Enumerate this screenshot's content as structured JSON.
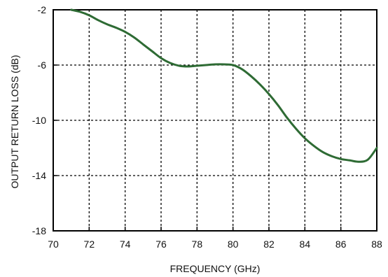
{
  "chart_data": {
    "type": "line",
    "title": "",
    "xlabel": "FREQUENCY (GHz)",
    "ylabel": "OUTPUT RETURN LOSS (dB)",
    "xlim": [
      70,
      88
    ],
    "ylim": [
      -18,
      -2
    ],
    "x_ticks": [
      70,
      72,
      74,
      76,
      78,
      80,
      82,
      84,
      86,
      88
    ],
    "y_ticks": [
      -2,
      -6,
      -10,
      -14,
      -18
    ],
    "x_tick_labels": [
      "70",
      "72",
      "74",
      "76",
      "78",
      "80",
      "82",
      "84",
      "86",
      "88"
    ],
    "y_tick_labels": [
      "-2",
      "-6",
      "-10",
      "-14",
      "-18"
    ],
    "grid": true,
    "grid_style": "dotted",
    "line_color": "#2e6b34",
    "series": [
      {
        "x": [
          71.0,
          71.5,
          72.0,
          72.5,
          73.0,
          73.5,
          74.0,
          74.5,
          75.0,
          75.5,
          76.0,
          76.5,
          77.0,
          77.5,
          78.0,
          78.5,
          79.0,
          79.5,
          80.0,
          80.5,
          81.0,
          81.5,
          82.0,
          82.5,
          83.0,
          83.5,
          84.0,
          84.5,
          85.0,
          85.5,
          86.0,
          86.5,
          87.0,
          87.5,
          88.0
        ],
        "y": [
          -2.0,
          -2.15,
          -2.4,
          -2.75,
          -3.05,
          -3.3,
          -3.6,
          -4.0,
          -4.5,
          -5.0,
          -5.5,
          -5.85,
          -6.05,
          -6.1,
          -6.05,
          -6.0,
          -5.95,
          -5.95,
          -6.0,
          -6.3,
          -6.8,
          -7.4,
          -8.1,
          -8.9,
          -9.8,
          -10.6,
          -11.3,
          -11.85,
          -12.3,
          -12.6,
          -12.8,
          -12.9,
          -13.0,
          -12.85,
          -12.0
        ]
      }
    ]
  }
}
